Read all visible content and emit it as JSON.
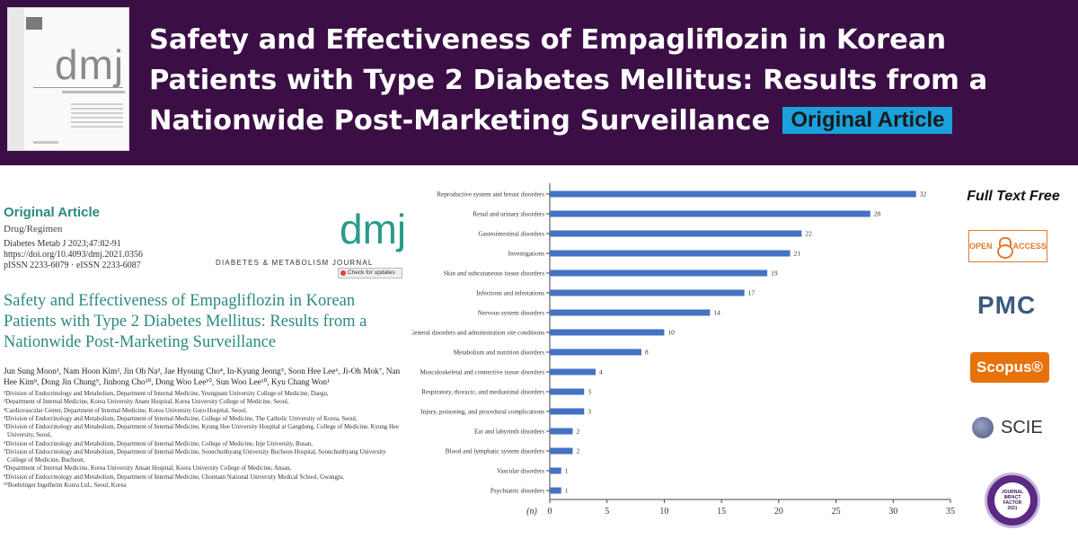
{
  "banner": {
    "title": "Safety and Effectiveness of Empagliflozin in Korean Patients with Type 2 Diabetes Mellitus: Results from a Nationwide Post-Marketing Surveillance",
    "tag": "Original Article",
    "background": "#3b0f45"
  },
  "cover": {
    "logo": "dmj"
  },
  "paper": {
    "article_type": "Original Article",
    "category": "Drug/Regimen",
    "citation": "Diabetes Metab J 2023;47:82-91",
    "doi": "https://doi.org/10.4093/dmj.2021.0356",
    "issn": "pISSN 2233-6079 · eISSN 2233-6087",
    "logo": "dmj",
    "logo_subtitle": "DIABETES & METABOLISM JOURNAL",
    "check_updates": "Check for updates",
    "title": "Safety and Effectiveness of Empagliflozin in Korean Patients with Type 2 Diabetes Mellitus: Results from a Nationwide Post-Marketing Surveillance",
    "authors": "Jun Sung Moon¹, Nam Hoon Kim², Jin Oh Na³, Jae Hyoung Cho⁴, In-Kyung Jeong⁵, Soon Hee Lee⁶, Ji-Oh Mok⁷, Nan Hee Kim⁸, Dong Jin Chung⁹, Jinhong Cho¹⁰, Dong Woo Lee¹⁰, Sun Woo Lee¹⁰, Kyu Chang Won¹",
    "affiliations": [
      "¹Division of Endocrinology and Metabolism, Department of Internal Medicine, Yeungnam University College of Medicine, Daegu,",
      "²Department of Internal Medicine, Korea University Anam Hospital, Korea University College of Medicine, Seoul,",
      "³Cardiovascular Center, Department of Internal Medicine, Korea University Guro Hospital, Seoul,",
      "⁴Division of Endocrinology and Metabolism, Department of Internal Medicine, College of Medicine, The Catholic University of Korea, Seoul,",
      "⁵Division of Endocrinology and Metabolism, Department of Internal Medicine, Kyung Hee University Hospital at Gangdong, College of Medicine, Kyung Hee",
      "University, Seoul,",
      "⁶Division of Endocrinology and Metabolism, Department of Internal Medicine, College of Medicine, Inje University, Busan,",
      "⁷Division of Endocrinology and Metabolism, Department of Internal Medicine, Soonchunhyang University Bucheon Hospital, Soonchunhyang University",
      "College of Medicine, Bucheon,",
      "⁸Department of Internal Medicine, Korea University Ansan Hospital, Korea University College of Medicine, Ansan,",
      "⁹Division of Endocrinology and Metabolism, Department of Internal Medicine, Chonnam National University Medical School, Gwangju,",
      "¹⁰Boehringer Ingelheim Korea Ltd., Seoul, Korea"
    ]
  },
  "chart_data": {
    "type": "bar",
    "orientation": "horizontal",
    "categories": [
      "Reproductive system and breast disorders",
      "Renal and urinary disorders",
      "Gastrointestinal disorders",
      "Investigations",
      "Skin and subcutaneous tissue disorders",
      "Infections and infestations",
      "Nervous system disorders",
      "General disorders and administration site conditions",
      "Metabolism and nutrition disorders",
      "Musculoskeletal and connective tissue disorders",
      "Respiratory, thoracic, and mediastinal disorders",
      "Injury, poisoning, and procedural complications",
      "Ear and labyrinth disorders",
      "Blood and lymphatic system disorders",
      "Vascular disorders",
      "Psychiatric disorders"
    ],
    "values": [
      32,
      28,
      22,
      21,
      19,
      17,
      14,
      10,
      8,
      4,
      3,
      3,
      2,
      2,
      1,
      1
    ],
    "xlabel": "(n)",
    "xlim": [
      0,
      35
    ],
    "xticks": [
      0,
      5,
      10,
      15,
      20,
      25,
      30,
      35
    ],
    "bar_color": "#4472c4",
    "grid": false
  },
  "badges": {
    "full_text": "Full Text Free",
    "open_access": "OPEN ACCESS",
    "open_access_left": "OPEN",
    "open_access_right": "ACCESS",
    "pmc": "PMC",
    "scopus": "Scopus®",
    "scie": "SCIE",
    "jif_top": "JOURNAL CITATION REPORTS",
    "jif_brand": "Clarivate Analytics",
    "jif_line1": "JOURNAL",
    "jif_line2": "IMPACT",
    "jif_line3": "FACTOR",
    "jif_year": "2021"
  }
}
